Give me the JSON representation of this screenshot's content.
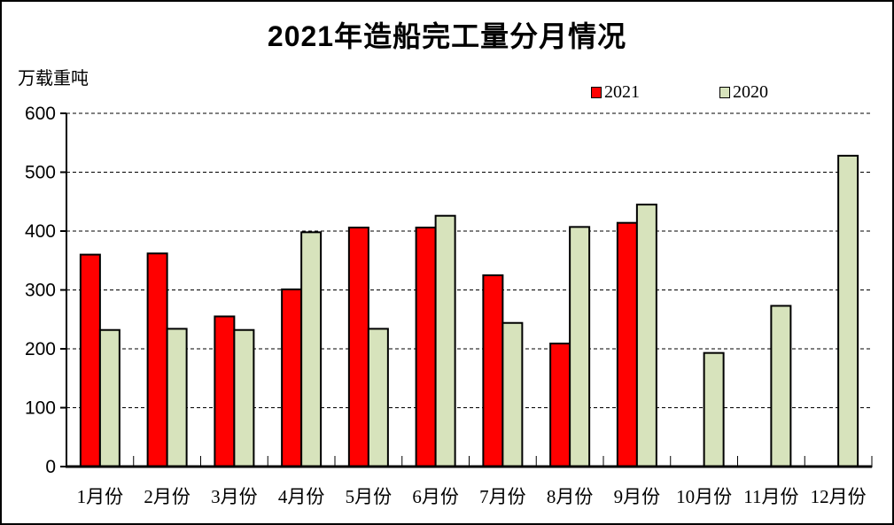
{
  "chart_data": {
    "type": "bar",
    "title": "2021年造船完工量分月情况",
    "ylabel": "万载重吨",
    "categories": [
      "1月份",
      "2月份",
      "3月份",
      "4月份",
      "5月份",
      "6月份",
      "7月份",
      "8月份",
      "9月份",
      "10月份",
      "11月份",
      "12月份"
    ],
    "series": [
      {
        "name": "2021",
        "color": "#FF0000",
        "values": [
          360,
          362,
          255,
          301,
          406,
          406,
          325,
          209,
          414,
          null,
          null,
          null
        ]
      },
      {
        "name": "2020",
        "color": "#D7E3BC",
        "values": [
          232,
          234,
          232,
          398,
          234,
          426,
          244,
          407,
          445,
          193,
          273,
          528
        ]
      }
    ],
    "ylim": [
      0,
      600
    ],
    "ytick_interval": 100,
    "grid": "horizontal-dashed",
    "legend_position": "top-right",
    "axis_color": "#000000",
    "background_color": "#FFFFFF"
  }
}
